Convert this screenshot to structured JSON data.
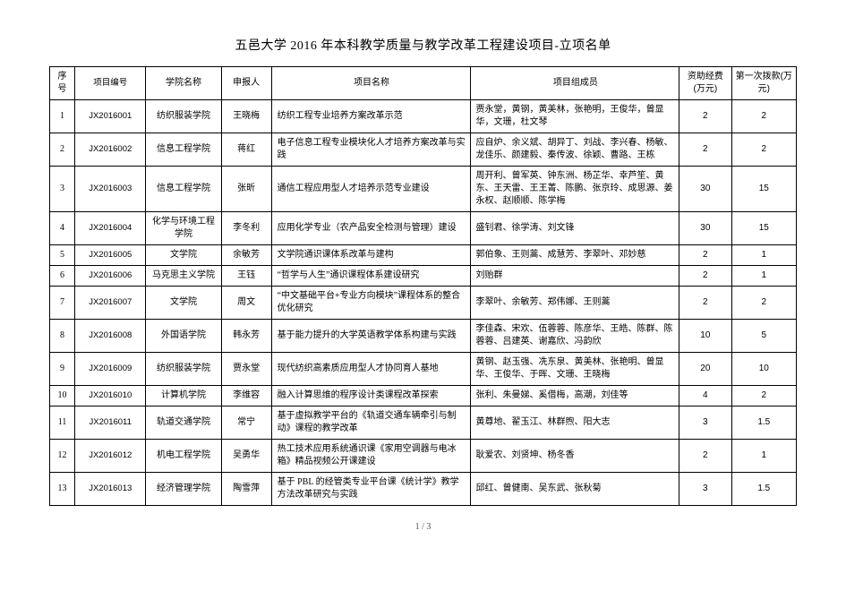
{
  "document": {
    "title": "五邑大学 2016 年本科教学质量与教学改革工程建设项目-立项名单",
    "footer": "1 / 3"
  },
  "table": {
    "headers": {
      "seq": "序号",
      "project_id": "项目编号",
      "college": "学院名称",
      "applicant": "申报人",
      "project_name": "项目名称",
      "members": "项目组成员",
      "fund": "资助经费(万元)",
      "first_pay": "第一次拨款(万元)"
    },
    "rows": [
      {
        "seq": "1",
        "project_id": "JX2016001",
        "college": "纺织服装学院",
        "applicant": "王晓梅",
        "project_name": "纺织工程专业培养方案改革示范",
        "members": "贾永堂，黄钢，黄美林，张艳明，王俊华，曾显华，文珊，杜文琴",
        "fund": "2",
        "first_pay": "2"
      },
      {
        "seq": "2",
        "project_id": "JX2016002",
        "college": "信息工程学院",
        "applicant": "蒋红",
        "project_name": "电子信息工程专业模块化人才培养方案改革与实践",
        "members": "应自炉、余义斌、胡异丁、刘战、李兴春、杨敏、龙佳乐、颜建毅、秦传波、徐颖、曹路、王栋",
        "fund": "2",
        "first_pay": "2"
      },
      {
        "seq": "3",
        "project_id": "JX2016003",
        "college": "信息工程学院",
        "applicant": "张昕",
        "project_name": "通信工程应用型人才培养示范专业建设",
        "members": "周开利、曾军英、钟东洲、杨芷华、幸芦笙、黄东、王天雷、王王菁、陈鹏、张京玲、成思源、姜永权、赵顺顺、陈学梅",
        "fund": "30",
        "first_pay": "15"
      },
      {
        "seq": "4",
        "project_id": "JX2016004",
        "college": "化学与环境工程学院",
        "applicant": "李冬利",
        "project_name": "应用化学专业（农产品安全检测与管理）建设",
        "members": "盛钊君、徐学涛、刘文锋",
        "fund": "30",
        "first_pay": "15"
      },
      {
        "seq": "5",
        "project_id": "JX2016005",
        "college": "文学院",
        "applicant": "余敏芳",
        "project_name": "文学院通识课体系改革与建构",
        "members": "郭伯象、王则蒿、成慧芳、李翠叶、邓妙慈",
        "fund": "2",
        "first_pay": "1"
      },
      {
        "seq": "6",
        "project_id": "JX2016006",
        "college": "马克思主义学院",
        "applicant": "王钰",
        "project_name": "“哲学与人生”通识课程体系建设研究",
        "members": "刘贻群",
        "fund": "2",
        "first_pay": "1"
      },
      {
        "seq": "7",
        "project_id": "JX2016007",
        "college": "文学院",
        "applicant": "周文",
        "project_name": "“中文基础平台+专业方向模块”课程体系的整合优化研究",
        "members": "李翠叶、余敏芳、郑伟娜、王则蒿",
        "fund": "2",
        "first_pay": "2"
      },
      {
        "seq": "8",
        "project_id": "JX2016008",
        "college": "外国语学院",
        "applicant": "韩永芳",
        "project_name": "基于能力提升的大学英语教学体系构建与实践",
        "members": "李佳森、宋欢、伍蓉蓉、陈彦华、王皓、陈群、陈蓉蓉、吕建英、谢嘉欣、冯韵欣",
        "fund": "10",
        "first_pay": "5"
      },
      {
        "seq": "9",
        "project_id": "JX2016009",
        "college": "纺织服装学院",
        "applicant": "贾永堂",
        "project_name": "现代纺织高素质应用型人才协同育人基地",
        "members": "黄钢、赵玉强、冼东泉、黄美林、张艳明、曾显华、王俊华、于晖、文珊、王晓梅",
        "fund": "20",
        "first_pay": "10"
      },
      {
        "seq": "10",
        "project_id": "JX2016010",
        "college": "计算机学院",
        "applicant": "李维容",
        "project_name": "融入计算思维的程序设计类课程改革探索",
        "members": "张利、朱曼娣、奚借梅，高潮，刘佳等",
        "fund": "4",
        "first_pay": "2"
      },
      {
        "seq": "11",
        "project_id": "JX2016011",
        "college": "轨道交通学院",
        "applicant": "常宁",
        "project_name": "基于虚拟教学平台的《轨道交通车辆牵引与制动》课程的教学改革",
        "members": "黄尊地、翟玉江、林群煦、阳大志",
        "fund": "3",
        "first_pay": "1.5"
      },
      {
        "seq": "12",
        "project_id": "JX2016012",
        "college": "机电工程学院",
        "applicant": "吴勇华",
        "project_name": "热工技术应用系统通识课《家用空调器与电冰箱》精品视频公开课建设",
        "members": "耿爱农、刘贤坤、杨冬香",
        "fund": "2",
        "first_pay": "1"
      },
      {
        "seq": "13",
        "project_id": "JX2016013",
        "college": "经济管理学院",
        "applicant": "陶雪萍",
        "project_name": "基于 PBL 的经管类专业平台课《统计学》教学方法改革研究与实践",
        "members": "邱红、曾健南、吴东武、张秋菊",
        "fund": "3",
        "first_pay": "1.5"
      }
    ]
  },
  "style": {
    "font_family": "SimSun",
    "title_size": 14,
    "body_size": 10,
    "text_color": "#000000",
    "border_color": "#000000",
    "background": "#ffffff"
  }
}
